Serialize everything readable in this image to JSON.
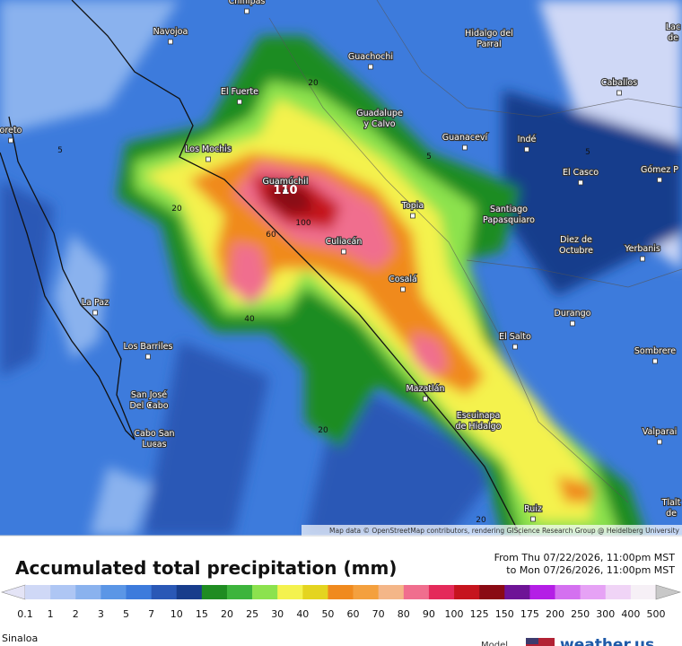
{
  "map": {
    "cities": [
      [
        "Chinipas"
      ],
      [
        "Navojoa"
      ],
      [
        "Guachochi"
      ],
      [
        "Hidalgo del",
        "Parral"
      ],
      [
        "Lac",
        "de"
      ],
      [
        "El Fuerte"
      ],
      [
        "Caballos"
      ],
      [
        "Guadalupe",
        "y Calvo"
      ],
      [
        "oreto"
      ],
      [
        "Guanaceví"
      ],
      [
        "Indé"
      ],
      [
        "Los Mochis"
      ],
      [
        "Gómez P"
      ],
      [
        "El Casco"
      ],
      [
        "Guamúchil"
      ],
      [
        "Topia"
      ],
      [
        "Santiago",
        "Papasquiaro"
      ],
      [
        "Culiacán"
      ],
      [
        "Diez de",
        "Octubre"
      ],
      [
        "Yerbanis"
      ],
      [
        "Cosalá"
      ],
      [
        "La Paz"
      ],
      [
        "Durango"
      ],
      [
        "El Salto"
      ],
      [
        "Los Barriles"
      ],
      [
        "Sombrere"
      ],
      [
        "Mazatlán"
      ],
      [
        "San José",
        "Del Cabo"
      ],
      [
        "Escuinapa",
        "de Hidalgo"
      ],
      [
        "Cabo San",
        "Lucas"
      ],
      [
        "Valparai"
      ],
      [
        "Tlalt",
        "de"
      ],
      [
        "Ruiz"
      ]
    ],
    "contour_labels": [
      "20",
      "5",
      "5",
      "5",
      "20",
      "110",
      "100",
      "60",
      "40",
      "20",
      "20"
    ],
    "attribution": "Map data © OpenStreetMap contributors, rendering GIScience Research Group @ Heidelberg University"
  },
  "title": "Accumulated total precipitation (mm)",
  "date_range": [
    "From Thu 07/22/2026, 11:00pm MST",
    "to Mon 07/26/2026, 11:00pm MST"
  ],
  "legend": {
    "ticks": [
      "0.1",
      "1",
      "2",
      "3",
      "5",
      "7",
      "10",
      "15",
      "20",
      "25",
      "30",
      "40",
      "50",
      "60",
      "70",
      "80",
      "90",
      "100",
      "125",
      "150",
      "175",
      "200",
      "250",
      "300",
      "400",
      "500"
    ],
    "colors": [
      "#e4e4f6",
      "#cfd8f6",
      "#aec6f4",
      "#8ab2ee",
      "#5b96e6",
      "#3d7bdc",
      "#2a58b6",
      "#183d8c",
      "#1f8c22",
      "#3db43c",
      "#8ce24e",
      "#f4f24e",
      "#e4d420",
      "#f08a1e",
      "#f4a03e",
      "#f4b688",
      "#f06e8e",
      "#e42a5a",
      "#c6141e",
      "#8a0a14",
      "#6e1496",
      "#b41ee6",
      "#d470f0",
      "#e6a2f5",
      "#f0d4f6",
      "#f6f0f6",
      "#c8c8c8"
    ]
  },
  "region": "Sinaloa",
  "model_label": "Model",
  "brand": "weather.us"
}
